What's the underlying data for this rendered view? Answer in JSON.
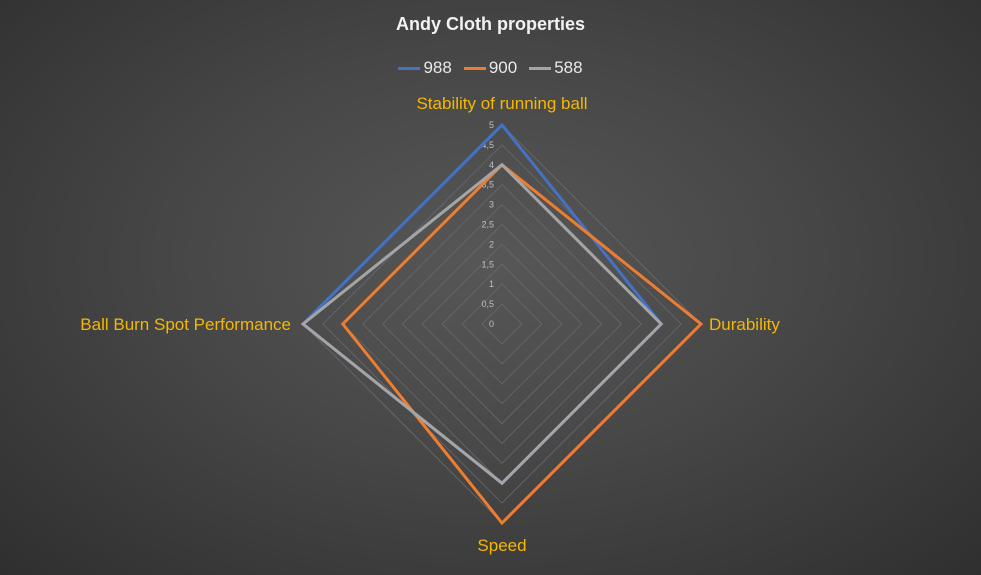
{
  "chart_data": {
    "type": "radar",
    "title": "Andy Cloth properties",
    "categories": [
      "Stability of running ball",
      "Durability",
      "Speed",
      "Ball Burn Spot Performance"
    ],
    "rlim": [
      0,
      5
    ],
    "ticks": [
      "0",
      "0,5",
      "1",
      "1,5",
      "2",
      "2,5",
      "3",
      "3,5",
      "4",
      "4,5",
      "5"
    ],
    "grid": true,
    "legend_position": "top",
    "series": [
      {
        "name": "988",
        "color": "#4472c4",
        "values": [
          5,
          4,
          4,
          5
        ]
      },
      {
        "name": "900",
        "color": "#ed7d31",
        "values": [
          4,
          5,
          5,
          4
        ]
      },
      {
        "name": "588",
        "color": "#a5a5a5",
        "values": [
          4,
          4,
          4,
          5
        ]
      }
    ],
    "label_color": "#f5b800"
  }
}
